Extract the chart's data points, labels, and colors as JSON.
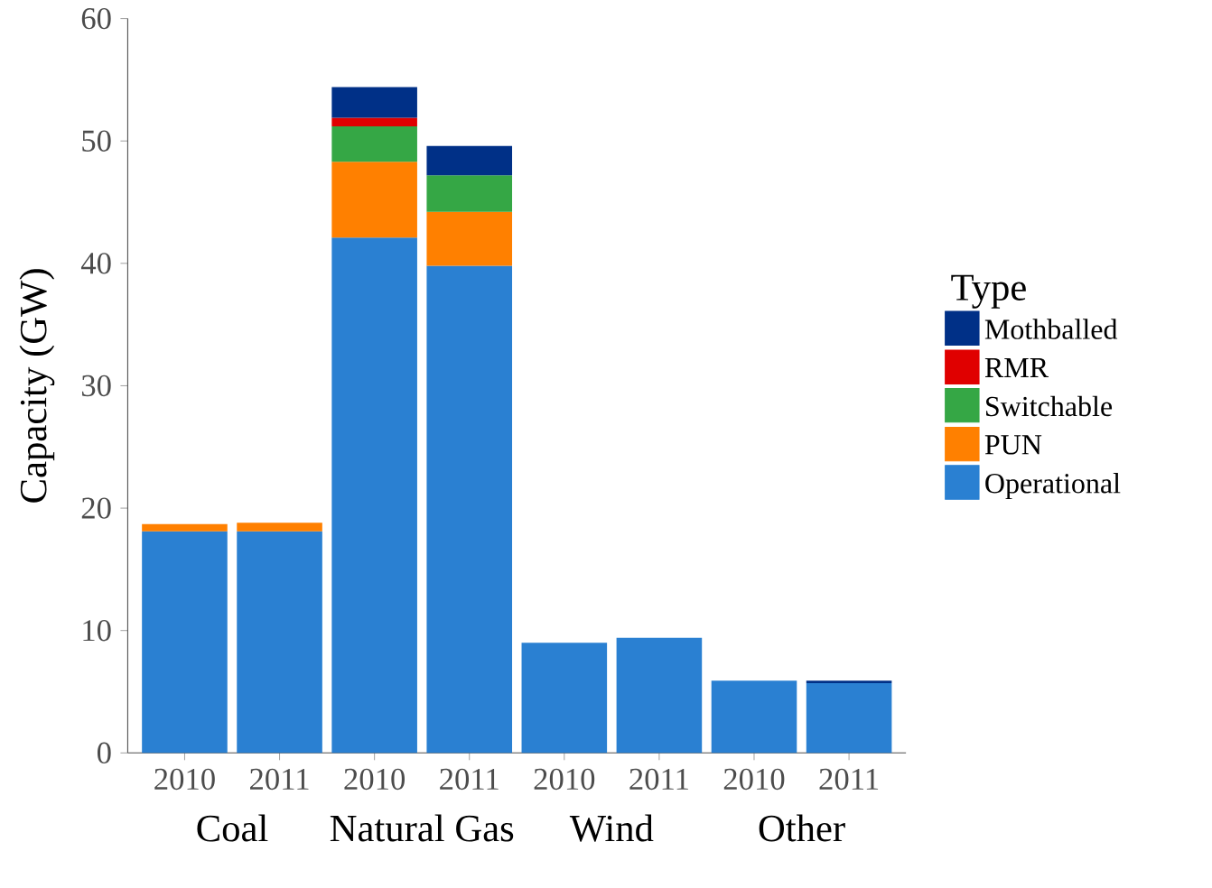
{
  "chart_data": {
    "type": "bar",
    "stacked": true,
    "ylabel": "Capacity (GW)",
    "legend_title": "Type",
    "categories": [
      "2010",
      "2011",
      "2010",
      "2011",
      "2010",
      "2011",
      "2010",
      "2011"
    ],
    "annotations": [
      "Coal",
      "Natural Gas",
      "Wind",
      "Other"
    ],
    "ylim": [
      0,
      60
    ],
    "yticks": [
      0,
      10,
      20,
      30,
      40,
      50,
      60
    ],
    "grid": false,
    "legend": "right",
    "series": [
      {
        "name": "Operational",
        "color": "#2a80d2",
        "values": [
          18.1,
          18.1,
          42.1,
          39.8,
          9.0,
          9.4,
          5.9,
          5.7
        ]
      },
      {
        "name": "PUN",
        "color": "#ff8000",
        "values": [
          0.6,
          0.7,
          6.2,
          4.4,
          null,
          null,
          null,
          null
        ]
      },
      {
        "name": "Switchable",
        "color": "#35a745",
        "values": [
          null,
          null,
          2.9,
          3.0,
          null,
          null,
          null,
          null
        ]
      },
      {
        "name": "RMR",
        "color": "#e00000",
        "values": [
          null,
          null,
          0.7,
          null,
          null,
          null,
          null,
          null
        ]
      },
      {
        "name": "Mothballed",
        "color": "#003087",
        "values": [
          null,
          null,
          2.5,
          2.4,
          null,
          null,
          null,
          0.2
        ]
      }
    ]
  }
}
